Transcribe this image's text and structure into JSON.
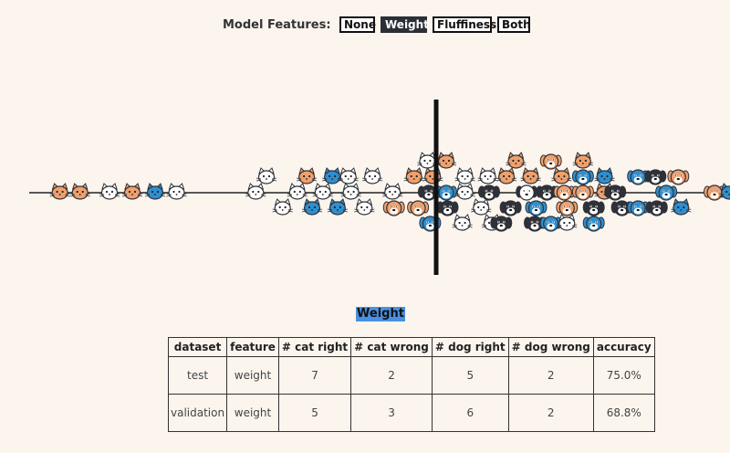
{
  "toolbar": {
    "label": "Model Features:",
    "buttons": [
      "None",
      "Weight",
      "Fluffiness",
      "Both"
    ],
    "active": "Weight"
  },
  "scatter": {
    "colors": {
      "dark": "#2e3138",
      "orange": "#f0a06c",
      "blue": "#2e8fd0",
      "light": "#ffffff"
    },
    "animals": [
      {
        "kind": "cat",
        "shade": "orange",
        "x": 0.6,
        "row": 0
      },
      {
        "kind": "cat",
        "shade": "orange",
        "x": 1.35,
        "row": 0
      },
      {
        "kind": "cat",
        "shade": "light",
        "x": 2.45,
        "row": 0
      },
      {
        "kind": "cat",
        "shade": "orange",
        "x": 3.3,
        "row": 0
      },
      {
        "kind": "cat",
        "shade": "blue",
        "x": 4.15,
        "row": 0
      },
      {
        "kind": "cat",
        "shade": "light",
        "x": 4.95,
        "row": 0
      },
      {
        "kind": "cat",
        "shade": "light",
        "x": 7.9,
        "row": 0
      },
      {
        "kind": "cat",
        "shade": "light",
        "x": 8.3,
        "row": -1
      },
      {
        "kind": "cat",
        "shade": "light",
        "x": 8.9,
        "row": 1
      },
      {
        "kind": "cat",
        "shade": "light",
        "x": 9.45,
        "row": 0
      },
      {
        "kind": "cat",
        "shade": "orange",
        "x": 9.8,
        "row": -1
      },
      {
        "kind": "cat",
        "shade": "blue",
        "x": 10.0,
        "row": 1
      },
      {
        "kind": "cat",
        "shade": "light",
        "x": 10.4,
        "row": 0
      },
      {
        "kind": "cat",
        "shade": "blue",
        "x": 10.75,
        "row": -1
      },
      {
        "kind": "cat",
        "shade": "blue",
        "x": 10.95,
        "row": 1
      },
      {
        "kind": "cat",
        "shade": "light",
        "x": 11.35,
        "row": -1
      },
      {
        "kind": "cat",
        "shade": "light",
        "x": 11.45,
        "row": 0
      },
      {
        "kind": "cat",
        "shade": "light",
        "x": 11.95,
        "row": 1
      },
      {
        "kind": "cat",
        "shade": "light",
        "x": 12.25,
        "row": -1
      },
      {
        "kind": "cat",
        "shade": "light",
        "x": 13.0,
        "row": 0
      },
      {
        "kind": "dog",
        "shade": "orange",
        "x": 13.05,
        "row": 1
      },
      {
        "kind": "cat",
        "shade": "orange",
        "x": 13.8,
        "row": -1
      },
      {
        "kind": "dog",
        "shade": "orange",
        "x": 13.95,
        "row": 1
      },
      {
        "kind": "cat",
        "shade": "light",
        "x": 14.3,
        "row": -2
      },
      {
        "kind": "dog",
        "shade": "dark",
        "x": 14.35,
        "row": 0
      },
      {
        "kind": "cat",
        "shade": "orange",
        "x": 14.5,
        "row": -1
      },
      {
        "kind": "dog",
        "shade": "blue",
        "x": 14.4,
        "row": 2
      },
      {
        "kind": "cat",
        "shade": "orange",
        "x": 15.0,
        "row": -2
      },
      {
        "kind": "dog",
        "shade": "blue",
        "x": 15.0,
        "row": 0
      },
      {
        "kind": "dog",
        "shade": "dark",
        "x": 15.05,
        "row": 1
      },
      {
        "kind": "cat",
        "shade": "light",
        "x": 15.7,
        "row": -1
      },
      {
        "kind": "cat",
        "shade": "light",
        "x": 15.7,
        "row": 0
      },
      {
        "kind": "cat",
        "shade": "light",
        "x": 15.6,
        "row": 2
      },
      {
        "kind": "cat",
        "shade": "light",
        "x": 16.3,
        "row": 1
      },
      {
        "kind": "dog",
        "shade": "dark",
        "x": 16.6,
        "row": 0
      },
      {
        "kind": "cat",
        "shade": "light",
        "x": 16.55,
        "row": -1
      },
      {
        "kind": "cat",
        "shade": "light",
        "x": 16.7,
        "row": 2
      },
      {
        "kind": "cat",
        "shade": "orange",
        "x": 17.25,
        "row": -1
      },
      {
        "kind": "dog",
        "shade": "dark",
        "x": 17.4,
        "row": 1
      },
      {
        "kind": "dog",
        "shade": "dark",
        "x": 17.05,
        "row": 2
      },
      {
        "kind": "cat",
        "shade": "orange",
        "x": 17.6,
        "row": -2
      },
      {
        "kind": "dog",
        "shade": "light",
        "x": 18.0,
        "row": 0
      },
      {
        "kind": "cat",
        "shade": "orange",
        "x": 18.15,
        "row": -1
      },
      {
        "kind": "dog",
        "shade": "dark",
        "x": 18.3,
        "row": 2
      },
      {
        "kind": "dog",
        "shade": "blue",
        "x": 18.35,
        "row": 1
      },
      {
        "kind": "dog",
        "shade": "dark",
        "x": 18.75,
        "row": 0
      },
      {
        "kind": "dog",
        "shade": "orange",
        "x": 18.9,
        "row": -2
      },
      {
        "kind": "dog",
        "shade": "blue",
        "x": 18.9,
        "row": 2
      },
      {
        "kind": "cat",
        "shade": "orange",
        "x": 19.3,
        "row": -1
      },
      {
        "kind": "dog",
        "shade": "orange",
        "x": 19.4,
        "row": 0
      },
      {
        "kind": "dog",
        "shade": "orange",
        "x": 19.5,
        "row": 1
      },
      {
        "kind": "cat",
        "shade": "light",
        "x": 19.5,
        "row": 2
      },
      {
        "kind": "dog",
        "shade": "blue",
        "x": 20.1,
        "row": -1
      },
      {
        "kind": "dog",
        "shade": "orange",
        "x": 20.1,
        "row": 0
      },
      {
        "kind": "cat",
        "shade": "orange",
        "x": 20.1,
        "row": -2
      },
      {
        "kind": "dog",
        "shade": "blue",
        "x": 20.5,
        "row": 2
      },
      {
        "kind": "dog",
        "shade": "dark",
        "x": 20.5,
        "row": 1
      },
      {
        "kind": "cat",
        "shade": "blue",
        "x": 20.9,
        "row": -1
      },
      {
        "kind": "cat",
        "shade": "orange",
        "x": 20.9,
        "row": 0
      },
      {
        "kind": "dog",
        "shade": "dark",
        "x": 21.3,
        "row": 0
      },
      {
        "kind": "dog",
        "shade": "dark",
        "x": 21.55,
        "row": 1
      },
      {
        "kind": "dog",
        "shade": "blue",
        "x": 22.15,
        "row": -1
      },
      {
        "kind": "dog",
        "shade": "blue",
        "x": 22.15,
        "row": 1
      },
      {
        "kind": "dog",
        "shade": "dark",
        "x": 22.8,
        "row": -1
      },
      {
        "kind": "dog",
        "shade": "dark",
        "x": 22.85,
        "row": 1
      },
      {
        "kind": "dog",
        "shade": "blue",
        "x": 23.2,
        "row": 0
      },
      {
        "kind": "dog",
        "shade": "orange",
        "x": 23.65,
        "row": -1
      },
      {
        "kind": "cat",
        "shade": "blue",
        "x": 23.75,
        "row": 1
      },
      {
        "kind": "dog",
        "shade": "orange",
        "x": 25.0,
        "row": 0
      },
      {
        "kind": "cat",
        "shade": "blue",
        "x": 25.55,
        "row": 0
      }
    ]
  },
  "section_title": "Weight",
  "table": {
    "headers": [
      "dataset",
      "feature",
      "# cat right",
      "# cat wrong",
      "# dog right",
      "# dog wrong",
      "accuracy"
    ],
    "rows": [
      [
        "test",
        "weight",
        "7",
        "2",
        "5",
        "2",
        "75.0%"
      ],
      [
        "validation",
        "weight",
        "5",
        "3",
        "6",
        "2",
        "68.8%"
      ]
    ]
  }
}
